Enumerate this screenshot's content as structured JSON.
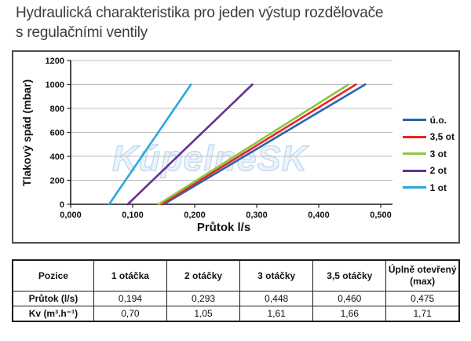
{
  "page": {
    "title_line1": "Hydraulická charakteristika pro jeden výstup rozdělovače",
    "title_line2": "s regulačními ventily"
  },
  "chart_data": {
    "type": "line",
    "title": "",
    "xlabel": "Průtok l/s",
    "ylabel": "Tlakový spád (mbar)",
    "xlim": [
      0,
      0.5
    ],
    "ylim": [
      0,
      1200
    ],
    "x_ticks": [
      0,
      0.1,
      0.2,
      0.3,
      0.4,
      0.5
    ],
    "x_tick_labels": [
      "0,000",
      "0,100",
      "0,200",
      "0,300",
      "0,400",
      "0,500"
    ],
    "y_ticks": [
      0,
      200,
      400,
      600,
      800,
      1000,
      1200
    ],
    "y_tick_labels": [
      "0",
      "200",
      "400",
      "600",
      "800",
      "1000",
      "1200"
    ],
    "grid": "horizontal",
    "legend_position": "right",
    "watermark": "KúpelneSK",
    "series": [
      {
        "name": "ú.o.",
        "color": "#2d62ae",
        "points": [
          [
            0.15,
            0
          ],
          [
            0.475,
            1000
          ]
        ]
      },
      {
        "name": "3,5 ot",
        "color": "#ec2227",
        "points": [
          [
            0.146,
            0
          ],
          [
            0.46,
            1000
          ]
        ]
      },
      {
        "name": "3 ot",
        "color": "#8cc63f",
        "points": [
          [
            0.142,
            0
          ],
          [
            0.448,
            1000
          ]
        ]
      },
      {
        "name": "2 ot",
        "color": "#663090",
        "points": [
          [
            0.092,
            0
          ],
          [
            0.293,
            1000
          ]
        ]
      },
      {
        "name": "1 ot",
        "color": "#2ba6e0",
        "points": [
          [
            0.062,
            0
          ],
          [
            0.194,
            1000
          ]
        ]
      }
    ]
  },
  "table": {
    "headers": [
      "Pozice",
      "1 otáčka",
      "2 otáčky",
      "3 otáčky",
      "3,5 otáčky",
      "Úplně otevřený\n(max)"
    ],
    "rows": [
      {
        "label": "Průtok (l/s)",
        "values": [
          "0,194",
          "0,293",
          "0,448",
          "0,460",
          "0,475"
        ]
      },
      {
        "label": "Kv (m³.h⁻¹)",
        "values": [
          "0,70",
          "1,05",
          "1,61",
          "1,66",
          "1,71"
        ]
      }
    ]
  }
}
